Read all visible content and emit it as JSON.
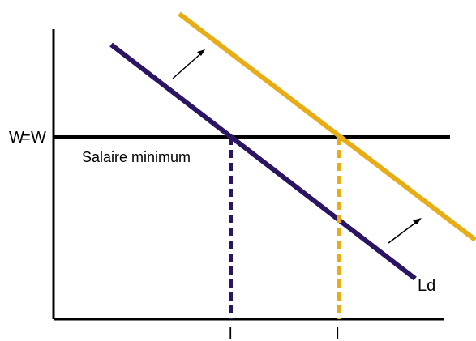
{
  "diagram": {
    "labels": {
      "wage_left": "W",
      "wage_equals": "=",
      "wage_right": "W",
      "minimum_wage": "Salaire minimum",
      "demand_curve": "Ld",
      "l_left": "l",
      "l_right": "l"
    },
    "colors": {
      "purple": "#2b1462",
      "gold": "#e8ad14",
      "black": "#000000"
    }
  }
}
